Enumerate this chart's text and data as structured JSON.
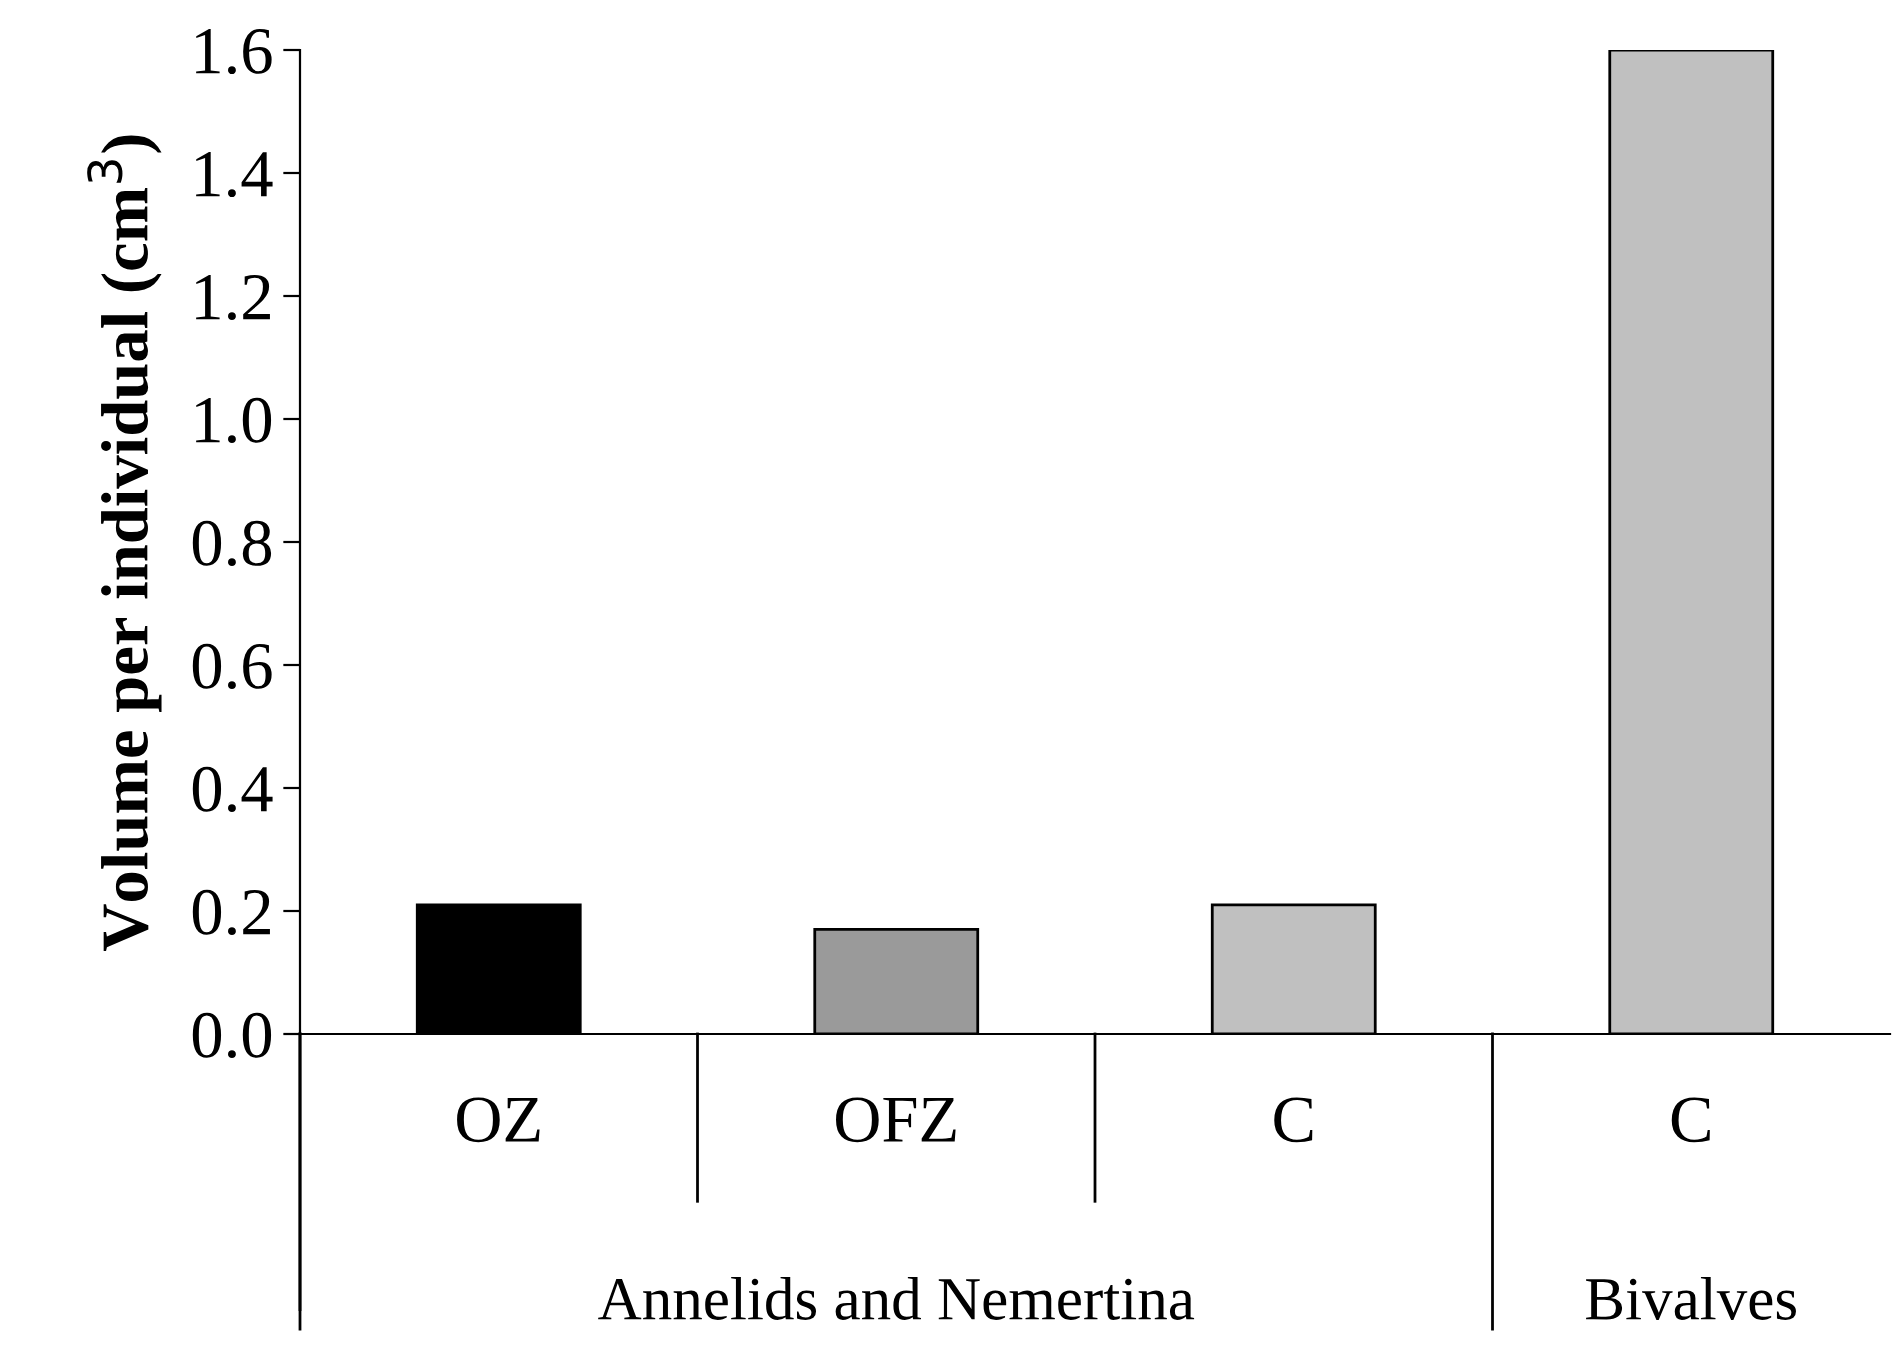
{
  "chart_data": {
    "type": "bar",
    "ylabel": "Volume per individual (cm$^{3}$)",
    "categories": [
      "OZ",
      "OFZ",
      "C",
      "C"
    ],
    "values": [
      0.21,
      0.17,
      0.21,
      1.6
    ],
    "colors": [
      "#000000",
      "#9a9a9a",
      "#c0c0c0",
      "#c0c0c0"
    ],
    "ylim": [
      0,
      1.6
    ],
    "yticks": [
      {
        "value": 0,
        "label": "0.0"
      },
      {
        "value": 0.2,
        "label": "0.2"
      },
      {
        "value": 0.4,
        "label": "0.4"
      },
      {
        "value": 0.6,
        "label": "0.6"
      },
      {
        "value": 0.8,
        "label": "0.8"
      },
      {
        "value": 1.0,
        "label": "1.0"
      },
      {
        "value": 1.2,
        "label": "1.2"
      },
      {
        "value": 1.4,
        "label": "1.4"
      },
      {
        "value": 1.6,
        "label": "1.6"
      }
    ],
    "annotations": [
      "Annelids and Nemertina",
      "Bivalves"
    ],
    "grid": false,
    "legend": false
  }
}
